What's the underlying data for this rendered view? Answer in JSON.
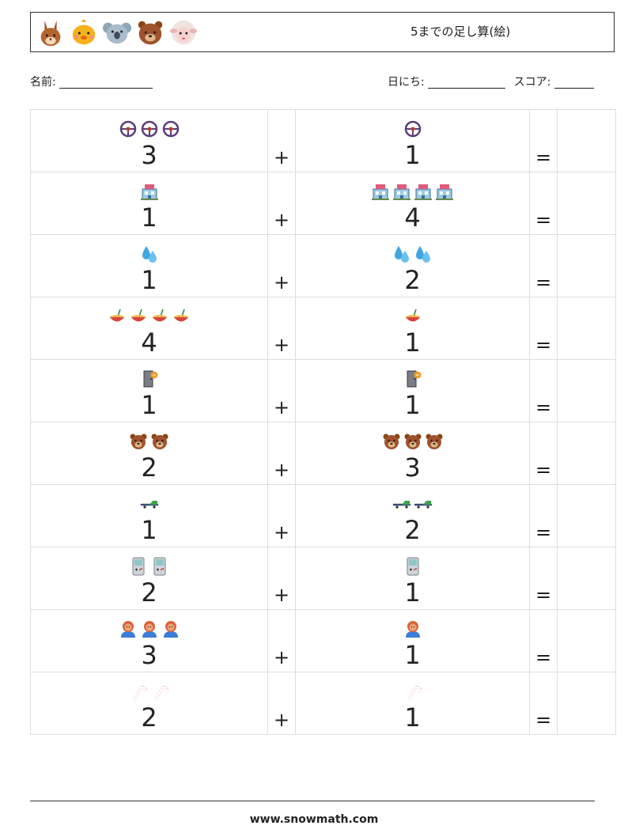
{
  "header": {
    "title": "5までの足し算(絵)",
    "animals": [
      "rabbit-icon",
      "chick-icon",
      "koala-icon",
      "bear-icon",
      "sheep-icon"
    ]
  },
  "meta": {
    "name_label": "名前:",
    "date_label": "日にち:",
    "score_label": "スコア:"
  },
  "rows": [
    {
      "icon": "steering-wheel-icon",
      "a": 3,
      "b": 1,
      "plus": "+",
      "equals": "="
    },
    {
      "icon": "building-icon",
      "a": 1,
      "b": 4,
      "plus": "+",
      "equals": "="
    },
    {
      "icon": "water-drops-icon",
      "a": 1,
      "b": 2,
      "plus": "+",
      "equals": "="
    },
    {
      "icon": "bowl-icon",
      "a": 4,
      "b": 1,
      "plus": "+",
      "equals": "="
    },
    {
      "icon": "door-icon",
      "a": 1,
      "b": 1,
      "plus": "+",
      "equals": "="
    },
    {
      "icon": "bear-face-icon",
      "a": 2,
      "b": 3,
      "plus": "+",
      "equals": "="
    },
    {
      "icon": "skateboard-icon",
      "a": 1,
      "b": 2,
      "plus": "+",
      "equals": "="
    },
    {
      "icon": "gameboy-icon",
      "a": 2,
      "b": 1,
      "plus": "+",
      "equals": "="
    },
    {
      "icon": "person-icon",
      "a": 3,
      "b": 1,
      "plus": "+",
      "equals": "="
    },
    {
      "icon": "candy-cane-icon",
      "a": 2,
      "b": 1,
      "plus": "+",
      "equals": "="
    }
  ],
  "footer": {
    "url": "www.snowmath.com"
  }
}
